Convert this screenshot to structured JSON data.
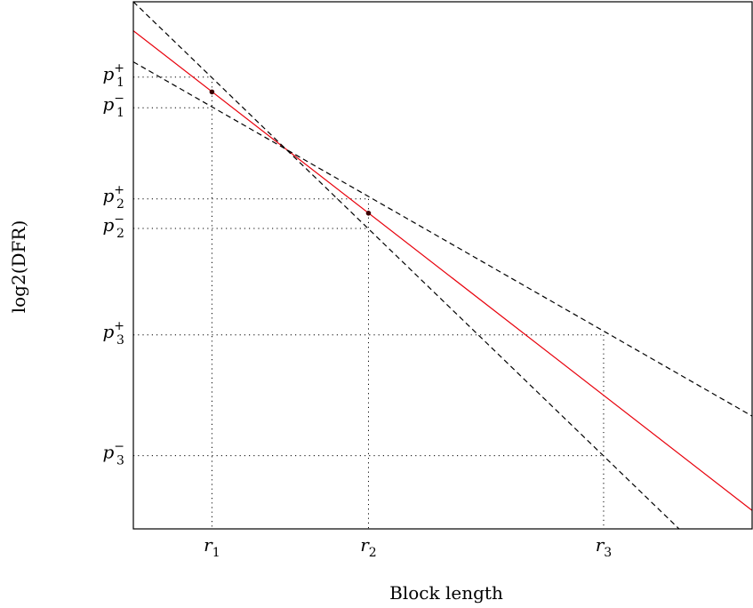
{
  "chart_data": {
    "type": "line",
    "title": "",
    "xlabel": "Block length",
    "ylabel": "log2(DFR)",
    "xlim": [
      0,
      100
    ],
    "ylim": [
      -100,
      0
    ],
    "grid": false,
    "x_ticks": [
      {
        "label": "r1",
        "value": 12.7
      },
      {
        "label": "r2",
        "value": 38.0
      },
      {
        "label": "r3",
        "value": 76.0
      }
    ],
    "y_ticks": [
      {
        "label": "p1+",
        "value": -14.3
      },
      {
        "label": "p1-",
        "value": -20.1
      },
      {
        "label": "p2+",
        "value": -37.4
      },
      {
        "label": "p2-",
        "value": -43.0
      },
      {
        "label": "p3+",
        "value": -63.2
      },
      {
        "label": "p3-",
        "value": -86.1
      }
    ],
    "series": [
      {
        "style": "solid",
        "color": "#e8000b",
        "points": [
          [
            0,
            -5.5
          ],
          [
            100,
            -96.5
          ]
        ]
      },
      {
        "style": "dashed",
        "color": "#000000",
        "points": [
          [
            0,
            0
          ],
          [
            88.2,
            -100
          ]
        ]
      },
      {
        "style": "dashed",
        "color": "#000000",
        "points": [
          [
            0,
            -11.4
          ],
          [
            100,
            -78.6
          ]
        ]
      }
    ],
    "markers": [
      {
        "x": 12.7,
        "y": -17.1
      },
      {
        "x": 38.0,
        "y": -40.1
      }
    ],
    "guides": [
      {
        "y": -14.3,
        "x": 12.7
      },
      {
        "y": -20.1,
        "x": 12.7
      },
      {
        "y": -37.4,
        "x": 38.0
      },
      {
        "y": -43.0,
        "x": 38.0
      },
      {
        "y": -63.2,
        "x": 76.0
      },
      {
        "y": -86.1,
        "x": 76.0
      }
    ]
  }
}
